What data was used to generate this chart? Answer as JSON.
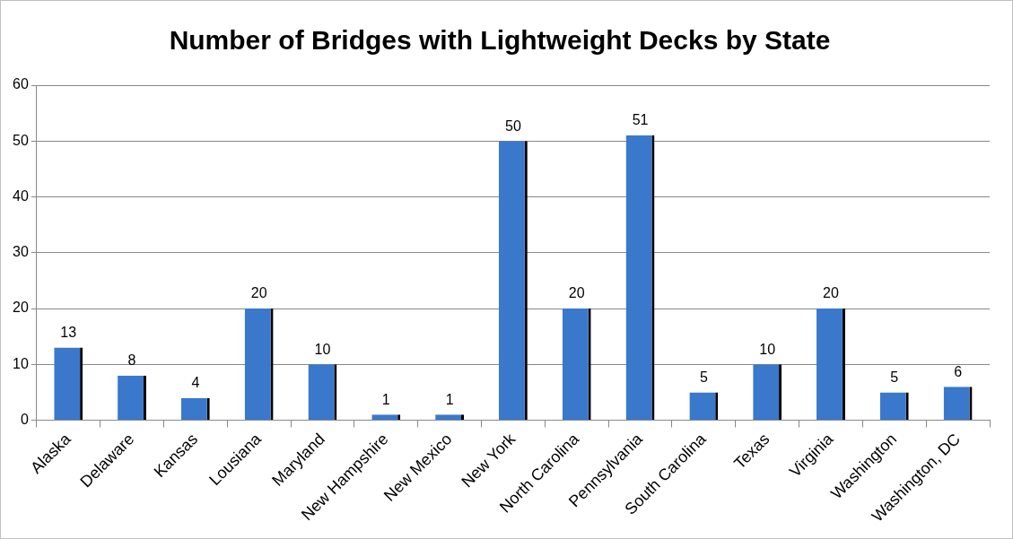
{
  "chart_data": {
    "type": "bar",
    "title": "Number of Bridges with Lightweight Decks by State",
    "categories": [
      "Alaska",
      "Delaware",
      "Kansas",
      "Lousiana",
      "Maryland",
      "New Hampshire",
      "New Mexico",
      "New York",
      "North Carolina",
      "Pennsylvania",
      "South Carolina",
      "Texas",
      "Virginia",
      "Washington",
      "Washington, DC"
    ],
    "values": [
      13,
      8,
      4,
      20,
      10,
      1,
      1,
      50,
      20,
      51,
      5,
      10,
      20,
      5,
      6
    ],
    "color": "#3a78cc",
    "ylim": [
      0,
      60
    ],
    "yticks": [
      0,
      10,
      20,
      30,
      40,
      50,
      60
    ],
    "grid": "y",
    "data_labels": true
  }
}
